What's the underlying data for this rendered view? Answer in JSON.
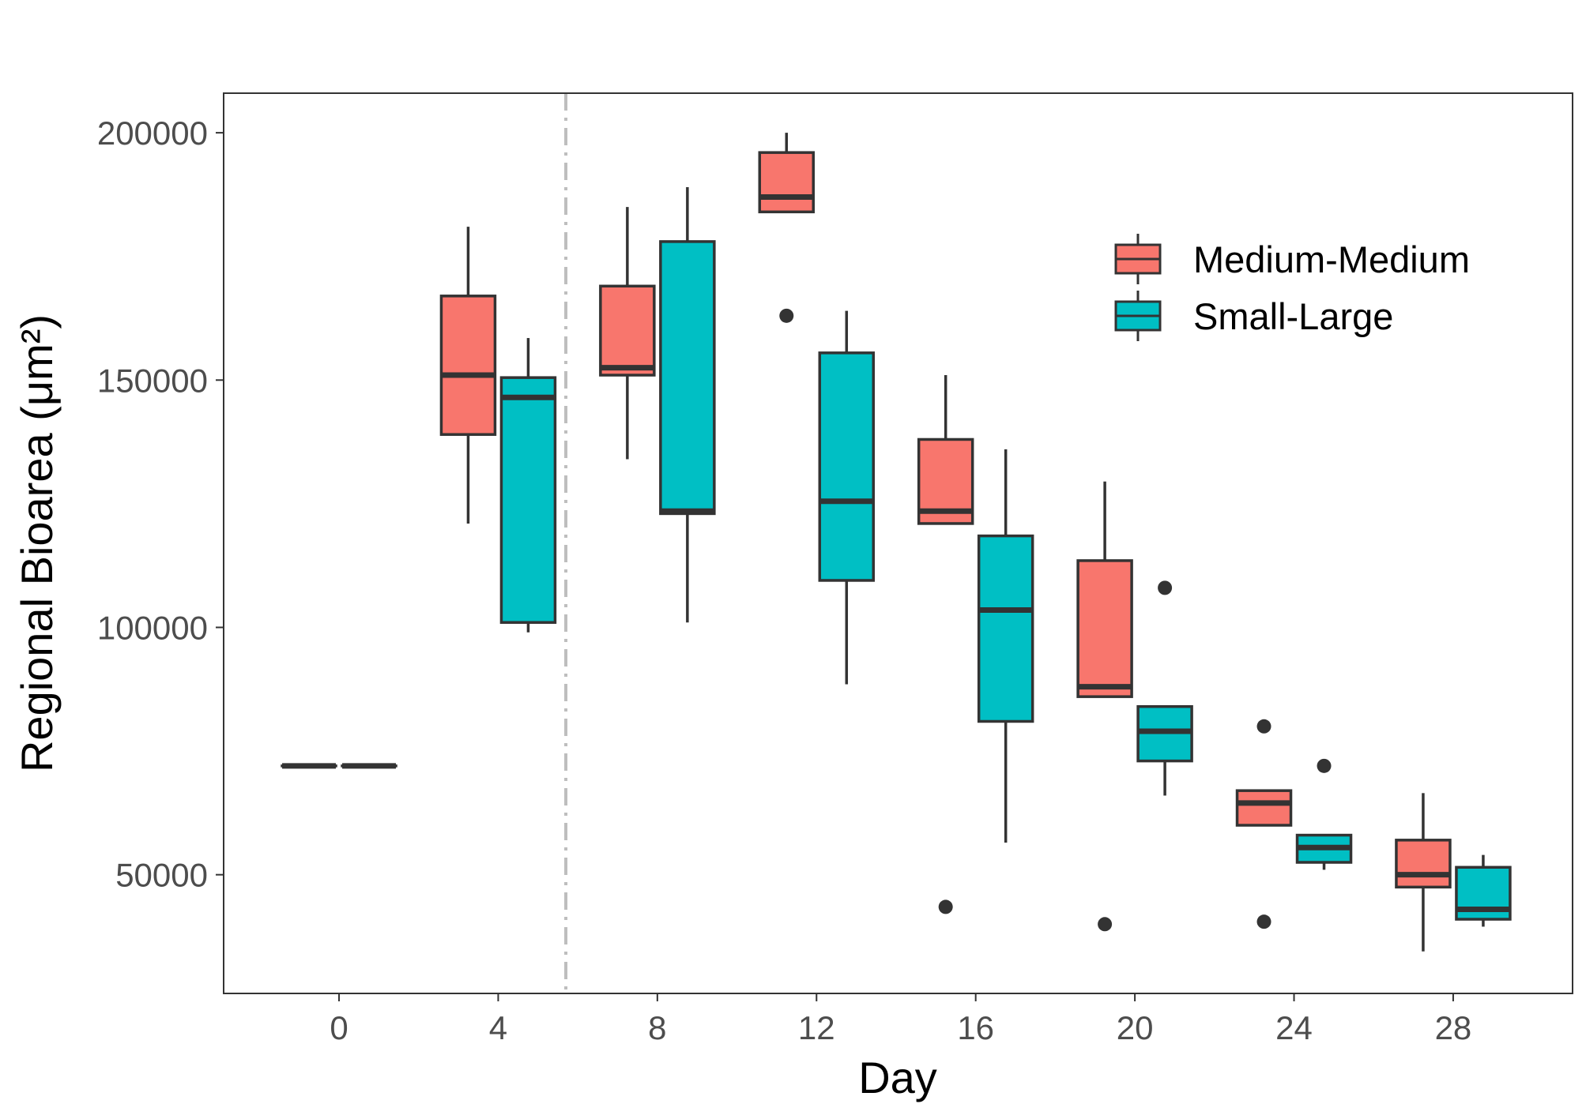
{
  "chart_data": {
    "type": "boxplot",
    "xlabel": "Day",
    "ylabel": "Regional Bioarea (μm²)",
    "x_ticks": [
      "0",
      "4",
      "8",
      "12",
      "16",
      "20",
      "24",
      "28"
    ],
    "y_ticks": [
      "50000",
      "100000",
      "150000",
      "200000"
    ],
    "xlim": [
      -2.9,
      31
    ],
    "ylim": [
      26000,
      208000
    ],
    "grid": false,
    "legend_position": "top-right",
    "reference_line": {
      "x": 5.7,
      "style": "dash-dot",
      "color": "#bebebe"
    },
    "colors": {
      "Medium-Medium": "#f8766d",
      "Small-Large": "#00bfc4",
      "outline": "#333333"
    },
    "series": [
      {
        "name": "Medium-Medium",
        "color": "#f8766d",
        "boxes": [
          {
            "day": 0,
            "low": 72000,
            "q1": 72000,
            "median": 72000,
            "q3": 72000,
            "high": 72000,
            "outliers": []
          },
          {
            "day": 4,
            "low": 121000,
            "q1": 139000,
            "median": 151000,
            "q3": 167000,
            "high": 181000,
            "outliers": []
          },
          {
            "day": 8,
            "low": 134000,
            "q1": 151000,
            "median": 152500,
            "q3": 169000,
            "high": 185000,
            "outliers": []
          },
          {
            "day": 12,
            "low": 184000,
            "q1": 184000,
            "median": 187000,
            "q3": 196000,
            "high": 200000,
            "outliers": [
              163000
            ]
          },
          {
            "day": 16,
            "low": 121000,
            "q1": 121000,
            "median": 123500,
            "q3": 138000,
            "high": 151000,
            "outliers": [
              43500
            ]
          },
          {
            "day": 20,
            "low": 86000,
            "q1": 86000,
            "median": 88000,
            "q3": 113500,
            "high": 129500,
            "outliers": [
              40000
            ]
          },
          {
            "day": 24,
            "low": 60000,
            "q1": 60000,
            "median": 64500,
            "q3": 67000,
            "high": 67000,
            "outliers": [
              80000,
              40500
            ]
          },
          {
            "day": 28,
            "low": 34500,
            "q1": 47500,
            "median": 50000,
            "q3": 57000,
            "high": 66500,
            "outliers": []
          }
        ]
      },
      {
        "name": "Small-Large",
        "color": "#00bfc4",
        "boxes": [
          {
            "day": 0,
            "low": 72000,
            "q1": 72000,
            "median": 72000,
            "q3": 72000,
            "high": 72000,
            "outliers": []
          },
          {
            "day": 4,
            "low": 99000,
            "q1": 101000,
            "median": 146500,
            "q3": 150500,
            "high": 158500,
            "outliers": []
          },
          {
            "day": 8,
            "low": 101000,
            "q1": 123000,
            "median": 123500,
            "q3": 178000,
            "high": 189000,
            "outliers": []
          },
          {
            "day": 12,
            "low": 88500,
            "q1": 109500,
            "median": 125500,
            "q3": 155500,
            "high": 164000,
            "outliers": []
          },
          {
            "day": 16,
            "low": 56500,
            "q1": 81000,
            "median": 103500,
            "q3": 118500,
            "high": 136000,
            "outliers": []
          },
          {
            "day": 20,
            "low": 66000,
            "q1": 73000,
            "median": 79000,
            "q3": 84000,
            "high": 84000,
            "outliers": [
              108000
            ]
          },
          {
            "day": 24,
            "low": 51000,
            "q1": 52500,
            "median": 55500,
            "q3": 58000,
            "high": 58000,
            "outliers": [
              72000
            ]
          },
          {
            "day": 28,
            "low": 39500,
            "q1": 41000,
            "median": 43000,
            "q3": 51500,
            "high": 54000,
            "outliers": []
          }
        ]
      }
    ]
  }
}
